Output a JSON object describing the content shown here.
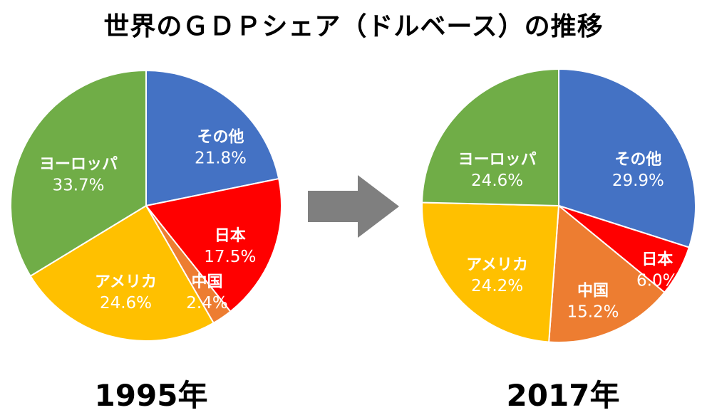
{
  "title": "世界のＧＤＰシェア（ドルベース）の推移",
  "chart_data": [
    {
      "type": "pie",
      "caption": "1995年",
      "slices": [
        {
          "label": "その他",
          "value": 21.8,
          "display": "21.8%",
          "color": "#4472C4"
        },
        {
          "label": "日本",
          "value": 17.5,
          "display": "17.5%",
          "color": "#FF0000"
        },
        {
          "label": "中国",
          "value": 2.4,
          "display": "2.4%",
          "color": "#ED7D31"
        },
        {
          "label": "アメリカ",
          "value": 24.6,
          "display": "24.6%",
          "color": "#FFC000"
        },
        {
          "label": "ヨーロッパ",
          "value": 33.7,
          "display": "33.7%",
          "color": "#70AD47"
        }
      ]
    },
    {
      "type": "pie",
      "caption": "2017年",
      "slices": [
        {
          "label": "その他",
          "value": 29.9,
          "display": "29.9%",
          "color": "#4472C4"
        },
        {
          "label": "日本",
          "value": 6.0,
          "display": "6.0%",
          "color": "#FF0000"
        },
        {
          "label": "中国",
          "value": 15.2,
          "display": "15.2%",
          "color": "#ED7D31"
        },
        {
          "label": "アメリカ",
          "value": 24.2,
          "display": "24.2%",
          "color": "#FFC000"
        },
        {
          "label": "ヨーロッパ",
          "value": 24.6,
          "display": "24.6%",
          "color": "#70AD47"
        }
      ]
    }
  ],
  "arrow_color": "#7F7F7F"
}
